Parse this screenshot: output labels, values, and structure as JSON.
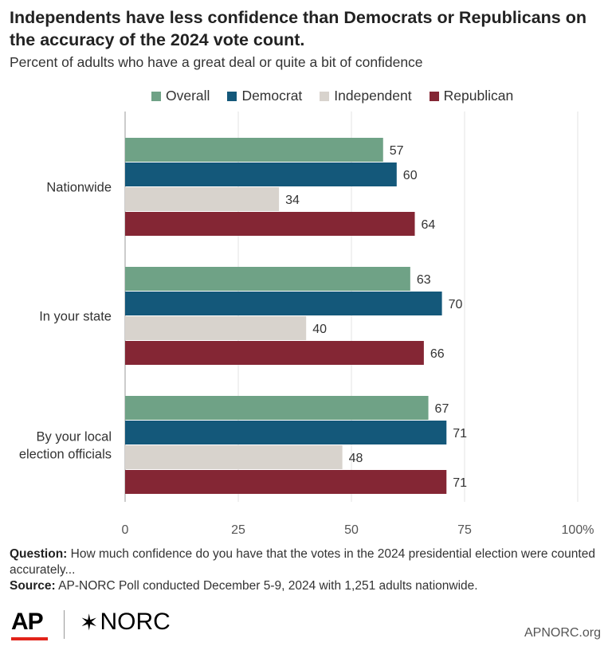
{
  "title": "Independents have less confidence than Democrats or Republicans on the accuracy of the 2024 vote count.",
  "subtitle": "Percent of adults who have a great deal or quite a bit of confidence",
  "legend": [
    {
      "label": "Overall",
      "color": "#6fa286"
    },
    {
      "label": "Democrat",
      "color": "#14587a"
    },
    {
      "label": "Independent",
      "color": "#d8d3cd"
    },
    {
      "label": "Republican",
      "color": "#842634"
    }
  ],
  "chart_data": {
    "type": "bar",
    "orientation": "horizontal",
    "categories": [
      "Nationwide",
      "In your state",
      "By your local election officials"
    ],
    "series": [
      {
        "name": "Overall",
        "values": [
          57,
          63,
          67
        ]
      },
      {
        "name": "Democrat",
        "values": [
          60,
          70,
          71
        ]
      },
      {
        "name": "Independent",
        "values": [
          34,
          40,
          48
        ]
      },
      {
        "name": "Republican",
        "values": [
          64,
          66,
          71
        ]
      }
    ],
    "xlim": [
      0,
      100
    ],
    "x_ticks": [
      "0",
      "25",
      "50",
      "75",
      "100%"
    ],
    "grid": true,
    "legend_position": "top"
  },
  "notes": {
    "question_label": "Question:",
    "question_text": "How much confidence do you have that the votes in the 2024 presidential election were counted accurately...",
    "source_label": "Source:",
    "source_text": "AP-NORC Poll conducted December 5-9, 2024 with 1,251 adults nationwide."
  },
  "footer": {
    "ap_logo": "AP",
    "norc_star": "✶",
    "norc_logo": "NORC",
    "site": "APNORC.org"
  }
}
